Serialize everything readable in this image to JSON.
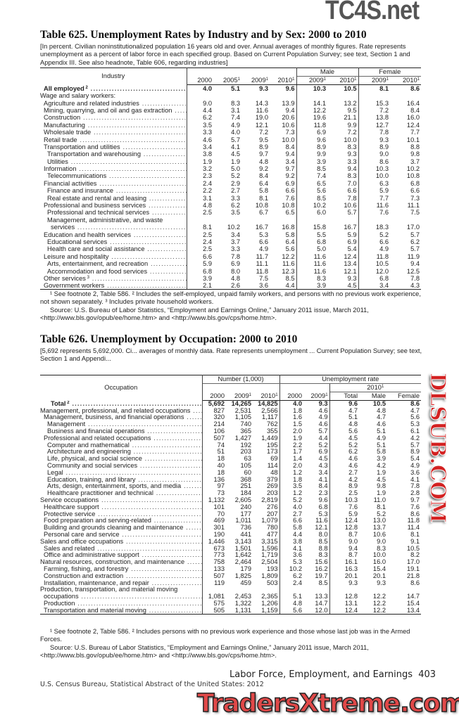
{
  "watermarks": {
    "top": "TC4S.net",
    "middle": "DLSUB.COM",
    "bottom": "TradersXtreme.com"
  },
  "t625": {
    "title": "Table 625. Unemployment Rates by Industry and by Sex: 2000 to 2010",
    "headnote": "[In percent. Civilian noninstitutionalized population 16 years old and over. Annual averages of monthly figures. Rate represents unemployment as a percent of labor force in each specified group. Based on Current Population Survey; see text, Section 1 and Appendix III. See also headnote, Table 606, regarding industries]",
    "col_industry": "Industry",
    "col_male": "Male",
    "col_female": "Female",
    "years": [
      "2000",
      "2005",
      "2009",
      "2010",
      "2009",
      "2010",
      "2009",
      "2010"
    ],
    "year_footnotes": [
      "",
      "1",
      "1",
      "1",
      "1",
      "1",
      "1",
      "1"
    ],
    "rows": [
      {
        "label": "All employed",
        "sup": "2",
        "indent": 1,
        "bold": true,
        "v": [
          "4.0",
          "5.1",
          "9.3",
          "9.6",
          "10.3",
          "10.5",
          "8.1",
          "8.6"
        ]
      },
      {
        "label": "Wage and salary workers:",
        "indent": 0,
        "nodots": true,
        "v": []
      },
      {
        "label": "Agriculture and related industries",
        "indent": 1,
        "v": [
          "9.0",
          "8.3",
          "14.3",
          "13.9",
          "14.1",
          "13.2",
          "15.3",
          "16.4"
        ]
      },
      {
        "label": "Mining, quarrying, and oil and gas extraction",
        "indent": 1,
        "v": [
          "4.4",
          "3.1",
          "11.6",
          "9.4",
          "12.2",
          "9.5",
          "7.2",
          "8.4"
        ]
      },
      {
        "label": "Construction",
        "indent": 1,
        "v": [
          "6.2",
          "7.4",
          "19.0",
          "20.6",
          "19.6",
          "21.1",
          "13.8",
          "16.0"
        ]
      },
      {
        "label": "Manufacturing",
        "indent": 1,
        "v": [
          "3.5",
          "4.9",
          "12.1",
          "10.6",
          "11.8",
          "9.9",
          "12.7",
          "12.4"
        ]
      },
      {
        "label": "Wholesale trade",
        "indent": 1,
        "v": [
          "3.3",
          "4.0",
          "7.2",
          "7.3",
          "6.9",
          "7.2",
          "7.8",
          "7.7"
        ]
      },
      {
        "label": "Retail trade",
        "indent": 1,
        "v": [
          "4.6",
          "5.7",
          "9.5",
          "10.0",
          "9.6",
          "10.0",
          "9.3",
          "10.1"
        ]
      },
      {
        "label": "Transportation and utilities",
        "indent": 1,
        "v": [
          "3.4",
          "4.1",
          "8.9",
          "8.4",
          "8.9",
          "8.3",
          "8.9",
          "8.8"
        ]
      },
      {
        "label": "Transportation and warehousing",
        "indent": 2,
        "v": [
          "3.8",
          "4.5",
          "9.7",
          "9.4",
          "9.9",
          "9.3",
          "9.0",
          "9.8"
        ]
      },
      {
        "label": "Utilities",
        "indent": 2,
        "v": [
          "1.9",
          "1.9",
          "4.8",
          "3.4",
          "3.9",
          "3.3",
          "8.6",
          "3.7"
        ]
      },
      {
        "label": "Information",
        "indent": 1,
        "v": [
          "3.2",
          "5.0",
          "9.2",
          "9.7",
          "8.5",
          "9.4",
          "10.3",
          "10.2"
        ]
      },
      {
        "label": "Telecommunications",
        "indent": 2,
        "v": [
          "2.3",
          "5.2",
          "8.4",
          "9.2",
          "7.4",
          "8.3",
          "10.0",
          "10.8"
        ]
      },
      {
        "label": "Financial activities",
        "indent": 1,
        "v": [
          "2.4",
          "2.9",
          "6.4",
          "6.9",
          "6.5",
          "7.0",
          "6.3",
          "6.8"
        ]
      },
      {
        "label": "Finance and insurance",
        "indent": 2,
        "v": [
          "2.2",
          "2.7",
          "5.8",
          "6.6",
          "5.6",
          "6.6",
          "5.9",
          "6.6"
        ]
      },
      {
        "label": "Real estate and rental and leasing",
        "indent": 2,
        "v": [
          "3.1",
          "3.3",
          "8.1",
          "7.6",
          "8.5",
          "7.8",
          "7.7",
          "7.3"
        ]
      },
      {
        "label": "Professional and business services",
        "indent": 1,
        "v": [
          "4.8",
          "6.2",
          "10.8",
          "10.8",
          "10.2",
          "10.6",
          "11.6",
          "11.1"
        ]
      },
      {
        "label": "Professional and technical services",
        "indent": 2,
        "v": [
          "2.5",
          "3.5",
          "6.7",
          "6.5",
          "6.0",
          "5.7",
          "7.6",
          "7.5"
        ]
      },
      {
        "label": "Management, administrative, and waste",
        "indent": 2,
        "nodots": true,
        "v": []
      },
      {
        "label": "services",
        "indent": 3,
        "v": [
          "8.1",
          "10.2",
          "16.7",
          "16.8",
          "15.8",
          "16.7",
          "18.3",
          "17.0"
        ]
      },
      {
        "label": "Education and health services",
        "indent": 1,
        "v": [
          "2.5",
          "3.4",
          "5.3",
          "5.8",
          "5.5",
          "5.9",
          "5.2",
          "5.7"
        ]
      },
      {
        "label": "Educational services",
        "indent": 2,
        "v": [
          "2.4",
          "3.7",
          "6.6",
          "6.4",
          "6.8",
          "6.9",
          "6.6",
          "6.2"
        ]
      },
      {
        "label": "Health care and social assistance",
        "indent": 2,
        "v": [
          "2.5",
          "3.3",
          "4.9",
          "5.6",
          "5.0",
          "5.4",
          "4.9",
          "5.7"
        ]
      },
      {
        "label": "Leisure and hospitality",
        "indent": 1,
        "v": [
          "6.6",
          "7.8",
          "11.7",
          "12.2",
          "11.6",
          "12.4",
          "11.8",
          "11.9"
        ]
      },
      {
        "label": "Arts, entertainment, and recreation",
        "indent": 2,
        "v": [
          "5.9",
          "6.9",
          "11.1",
          "11.6",
          "11.6",
          "13.4",
          "10.5",
          "9.4"
        ]
      },
      {
        "label": "Accommodation and food services",
        "indent": 2,
        "v": [
          "6.8",
          "8.0",
          "11.8",
          "12.3",
          "11.6",
          "12.1",
          "12.0",
          "12.5"
        ]
      },
      {
        "label": "Other services",
        "sup": "3",
        "indent": 1,
        "v": [
          "3.9",
          "4.8",
          "7.5",
          "8.5",
          "8.3",
          "9.3",
          "6.8",
          "7.8"
        ]
      },
      {
        "label": "Government workers",
        "indent": 1,
        "v": [
          "2.1",
          "2.6",
          "3.6",
          "4.4",
          "3.9",
          "4.5",
          "3.4",
          "4.3"
        ]
      }
    ],
    "footnote": "¹ See footnote 2, Table 586. ² Includes the self-employed, unpaid family workers, and persons with no previous work experience, not shown separately. ³ Includes private household workers.",
    "source": "Source: U.S. Bureau of Labor Statistics, “Employment and Earnings Online,” January 2011 issue, March 2011, <http://www.bls.gov/opub/ee/home.htm> and <http://www.bls.gov/cps/home.htm>."
  },
  "t626": {
    "title": "Table 626. Unemployment by Occupation: 2000 to 2010",
    "headnote": "[5,692 represents 5,692,000. Ci... averages of monthly data. Rate represents unemployment ... Current Population Survey; see text, Section 1 and Appendi...",
    "col_occupation": "Occupation",
    "col_number": "Number (1,000)",
    "col_rate": "Unemployment rate",
    "col_2010": "2010",
    "years": [
      "2000",
      "2009",
      "2010",
      "2000",
      "2009",
      "Total",
      "Male",
      "Female"
    ],
    "year_footnotes": [
      "",
      "1",
      "1",
      "",
      "1",
      "",
      "",
      ""
    ],
    "rows": [
      {
        "label": "Total",
        "sup": "2",
        "indent": 3,
        "bold": true,
        "v": [
          "5,692",
          "14,265",
          "14,825",
          "4.0",
          "9.3",
          "9.6",
          "10.5",
          "8.6"
        ]
      },
      {
        "label": "Management, professional, and related occupations",
        "indent": 0,
        "v": [
          "827",
          "2,531",
          "2,566",
          "1.8",
          "4.6",
          "4.7",
          "4.8",
          "4.7"
        ]
      },
      {
        "label": "Management, business, and financial operations",
        "indent": 1,
        "v": [
          "320",
          "1,105",
          "1,117",
          "1.6",
          "4.9",
          "5.1",
          "4.7",
          "5.6"
        ]
      },
      {
        "label": "Management",
        "indent": 2,
        "v": [
          "214",
          "740",
          "762",
          "1.5",
          "4.6",
          "4.8",
          "4.6",
          "5.3"
        ]
      },
      {
        "label": "Business and financial operations",
        "indent": 2,
        "v": [
          "106",
          "365",
          "355",
          "2.0",
          "5.7",
          "5.6",
          "5.1",
          "6.1"
        ]
      },
      {
        "label": "Professional and related occupations",
        "indent": 1,
        "v": [
          "507",
          "1,427",
          "1,449",
          "1.9",
          "4.4",
          "4.5",
          "4.9",
          "4.2"
        ]
      },
      {
        "label": "Computer and mathematical",
        "indent": 2,
        "v": [
          "74",
          "192",
          "195",
          "2.2",
          "5.2",
          "5.2",
          "5.1",
          "5.7"
        ]
      },
      {
        "label": "Architecture and engineering",
        "indent": 2,
        "v": [
          "51",
          "203",
          "173",
          "1.7",
          "6.9",
          "6.2",
          "5.8",
          "8.9"
        ]
      },
      {
        "label": "Life, physical, and social science",
        "indent": 2,
        "v": [
          "18",
          "63",
          "69",
          "1.4",
          "4.5",
          "4.6",
          "3.9",
          "5.4"
        ]
      },
      {
        "label": "Community and social services",
        "indent": 2,
        "v": [
          "40",
          "105",
          "114",
          "2.0",
          "4.3",
          "4.6",
          "4.2",
          "4.9"
        ]
      },
      {
        "label": "Legal",
        "indent": 2,
        "v": [
          "18",
          "60",
          "48",
          "1.2",
          "3.4",
          "2.7",
          "1.9",
          "3.6"
        ]
      },
      {
        "label": "Education, training, and library",
        "indent": 2,
        "v": [
          "136",
          "368",
          "379",
          "1.8",
          "4.1",
          "4.2",
          "4.5",
          "4.1"
        ]
      },
      {
        "label": "Arts, design, entertainment, sports, and media",
        "indent": 2,
        "v": [
          "97",
          "251",
          "269",
          "3.5",
          "8.4",
          "8.9",
          "9.8",
          "7.8"
        ]
      },
      {
        "label": "Healthcare practitioner and technical",
        "indent": 2,
        "v": [
          "73",
          "184",
          "203",
          "1.2",
          "2.3",
          "2.5",
          "1.9",
          "2.8"
        ]
      },
      {
        "label": "Service occupations",
        "indent": 0,
        "v": [
          "1,132",
          "2,605",
          "2,819",
          "5.2",
          "9.6",
          "10.3",
          "11.0",
          "9.7"
        ]
      },
      {
        "label": "Healthcare support",
        "indent": 1,
        "v": [
          "101",
          "240",
          "276",
          "4.0",
          "6.8",
          "7.6",
          "8.1",
          "7.6"
        ]
      },
      {
        "label": "Protective service",
        "indent": 1,
        "v": [
          "70",
          "177",
          "207",
          "2.7",
          "5.3",
          "5.9",
          "5.2",
          "8.6"
        ]
      },
      {
        "label": "Food preparation and serving-related",
        "indent": 1,
        "v": [
          "469",
          "1,011",
          "1,079",
          "6.6",
          "11.6",
          "12.4",
          "13.0",
          "11.8"
        ]
      },
      {
        "label": "Building and grounds cleaning and maintenance",
        "indent": 1,
        "v": [
          "301",
          "736",
          "780",
          "5.8",
          "12.1",
          "12.8",
          "13.7",
          "11.4"
        ]
      },
      {
        "label": "Personal care and service",
        "indent": 1,
        "v": [
          "190",
          "441",
          "477",
          "4.4",
          "8.0",
          "8.7",
          "10.6",
          "8.1"
        ]
      },
      {
        "label": "Sales and office occupations",
        "indent": 0,
        "v": [
          "1,446",
          "3,143",
          "3,315",
          "3.8",
          "8.5",
          "9.0",
          "9.0",
          "9.1"
        ]
      },
      {
        "label": "Sales and related",
        "indent": 1,
        "v": [
          "673",
          "1,501",
          "1,596",
          "4.1",
          "8.8",
          "9.4",
          "8.3",
          "10.5"
        ]
      },
      {
        "label": "Office and administrative support",
        "indent": 1,
        "v": [
          "773",
          "1,642",
          "1,719",
          "3.6",
          "8.3",
          "8.7",
          "10.0",
          "8.2"
        ]
      },
      {
        "label": "Natural resources, construction, and maintenance",
        "indent": 0,
        "v": [
          "758",
          "2,464",
          "2,504",
          "5.3",
          "15.6",
          "16.1",
          "16.0",
          "17.0"
        ]
      },
      {
        "label": "Farming, fishing, and forestry",
        "indent": 1,
        "v": [
          "133",
          "179",
          "193",
          "10.2",
          "16.2",
          "16.3",
          "15.4",
          "19.1"
        ]
      },
      {
        "label": "Construction and extraction",
        "indent": 1,
        "v": [
          "507",
          "1,825",
          "1,809",
          "6.2",
          "19.7",
          "20.1",
          "20.1",
          "21.8"
        ]
      },
      {
        "label": "Installation, maintenance, and repair",
        "indent": 1,
        "v": [
          "119",
          "459",
          "503",
          "2.4",
          "8.5",
          "9.3",
          "9.3",
          "8.6"
        ]
      },
      {
        "label": "Production, transportation, and material moving",
        "indent": 0,
        "nodots": true,
        "v": []
      },
      {
        "label": "occupations",
        "indent": 1,
        "v": [
          "1,081",
          "2,453",
          "2,365",
          "5.1",
          "13.3",
          "12.8",
          "12.2",
          "14.7"
        ]
      },
      {
        "label": "Production",
        "indent": 1,
        "v": [
          "575",
          "1,322",
          "1,206",
          "4.8",
          "14.7",
          "13.1",
          "12.2",
          "15.4"
        ]
      },
      {
        "label": "Transportation and material moving",
        "indent": 1,
        "v": [
          "505",
          "1,131",
          "1,159",
          "5.6",
          "12.0",
          "12.4",
          "12.2",
          "13.4"
        ]
      }
    ],
    "footnote": "¹ See footnote 2, Table 586. ² Includes persons with no previous work experience and those whose last job was in the Armed Forces.",
    "source": "Source: U.S. Bureau of Labor Statistics, “Employment and Earnings Online,” January 2011 issue, March 2011, <http://www.bls.gov/opub/ee/home.htm> and <http://www.bls.gov/cps/home.htm>."
  },
  "footer": {
    "section": "Labor Force, Employment, and Earnings",
    "page": "403",
    "publication": "U.S. Census Bureau, Statistical Abstract of the United States: 2012"
  }
}
